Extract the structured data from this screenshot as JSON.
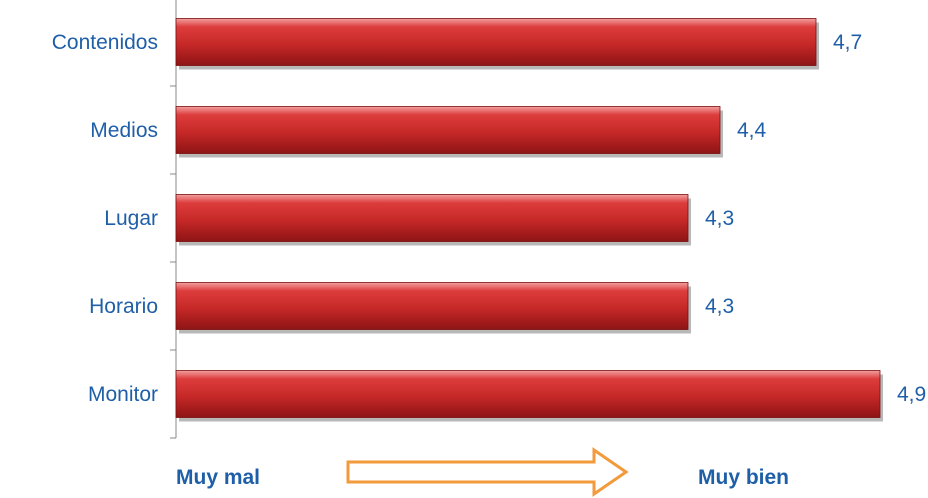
{
  "chart_data": {
    "type": "bar",
    "orientation": "horizontal",
    "categories": [
      "Contenidos",
      "Medios",
      "Lugar",
      "Horario",
      "Monitor"
    ],
    "values": [
      4.7,
      4.4,
      4.3,
      4.3,
      4.9
    ],
    "value_labels": [
      "4,7",
      "4,4",
      "4,3",
      "4,3",
      "4,9"
    ],
    "xlim": [
      2.7,
      5.0
    ],
    "grid": false,
    "bar_color": "#c62828",
    "label_color": "#1f5fa8"
  },
  "scale": {
    "low_label": "Muy mal",
    "high_label": "Muy bien",
    "arrow_color": "#f39a3c"
  }
}
